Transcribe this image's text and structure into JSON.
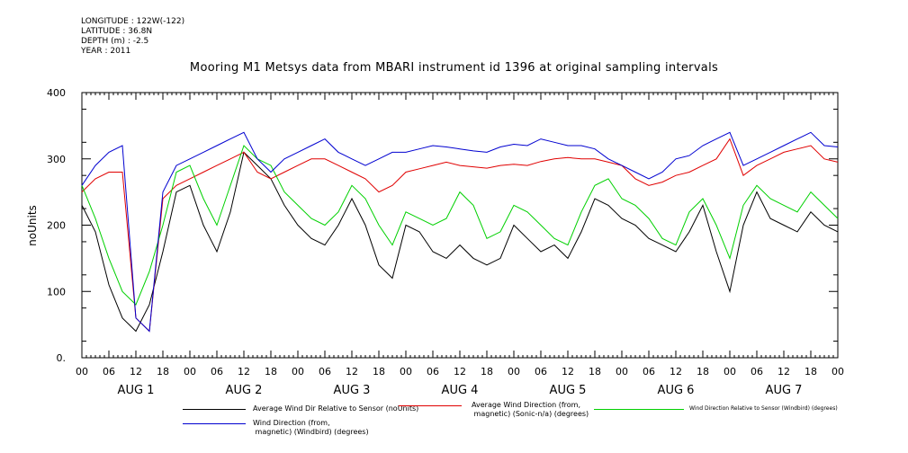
{
  "meta": {
    "longitude": "LONGITUDE : 122W(-122)",
    "latitude": "LATITUDE : 36.8N",
    "depth": "DEPTH (m) : -2.5",
    "year": "YEAR : 2011"
  },
  "chart_data": {
    "type": "line",
    "title": "Mooring M1 Metsys data from MBARI instrument id 1396 at original sampling intervals",
    "ylabel": "noUnits",
    "xlabel": "",
    "ylim": [
      0,
      400
    ],
    "yticks": [
      0,
      100,
      200,
      300,
      400
    ],
    "ytick_labels": [
      "0.",
      "100",
      "200",
      "300",
      "400"
    ],
    "xlim_hours": [
      0,
      168
    ],
    "xtick_labels": [
      "00",
      "06",
      "12",
      "18",
      "00",
      "06",
      "12",
      "18",
      "00",
      "06",
      "12",
      "18",
      "00",
      "06",
      "12",
      "18",
      "00",
      "06",
      "12",
      "18",
      "00",
      "06",
      "12",
      "18",
      "00",
      "06",
      "12",
      "18",
      "00"
    ],
    "day_labels": [
      "AUG 1",
      "AUG 2",
      "AUG 3",
      "AUG 4",
      "AUG 5",
      "AUG 6",
      "AUG 7"
    ],
    "grid": false,
    "colors": {
      "black": "#000000",
      "red": "#e00000",
      "green": "#00d000",
      "blue": "#0000d0"
    },
    "series": [
      {
        "name": "Average Wind Dir Relative to Sensor (noUnits)",
        "color": "#000000",
        "hours": [
          0,
          3,
          6,
          9,
          12,
          15,
          18,
          21,
          24,
          27,
          30,
          33,
          36,
          39,
          42,
          45,
          48,
          51,
          54,
          57,
          60,
          63,
          66,
          69,
          72,
          75,
          78,
          81,
          84,
          87,
          90,
          93,
          96,
          99,
          102,
          105,
          108,
          111,
          114,
          117,
          120,
          123,
          126,
          129,
          132,
          135,
          138,
          141,
          144,
          147,
          150,
          153,
          156,
          159,
          162,
          165,
          168
        ],
        "values": [
          230,
          190,
          110,
          60,
          40,
          80,
          160,
          250,
          260,
          200,
          160,
          220,
          310,
          290,
          270,
          230,
          200,
          180,
          170,
          200,
          240,
          200,
          140,
          120,
          200,
          190,
          160,
          150,
          170,
          150,
          140,
          150,
          200,
          180,
          160,
          170,
          150,
          190,
          240,
          230,
          210,
          200,
          180,
          170,
          160,
          190,
          230,
          160,
          100,
          200,
          250,
          210,
          200,
          190,
          220,
          200,
          190
        ]
      },
      {
        "name": "Average Wind Direction (from,\n magnetic) (Sonic-n/a) (degrees)",
        "color": "#e00000",
        "hours": [
          0,
          3,
          6,
          9,
          12,
          15,
          18,
          21,
          24,
          27,
          30,
          33,
          36,
          39,
          42,
          45,
          48,
          51,
          54,
          57,
          60,
          63,
          66,
          69,
          72,
          75,
          78,
          81,
          84,
          87,
          90,
          93,
          96,
          99,
          102,
          105,
          108,
          111,
          114,
          117,
          120,
          123,
          126,
          129,
          132,
          135,
          138,
          141,
          144,
          147,
          150,
          153,
          156,
          159,
          162,
          165,
          168
        ],
        "values": [
          250,
          270,
          280,
          280,
          60,
          40,
          240,
          260,
          270,
          280,
          290,
          300,
          310,
          280,
          270,
          280,
          290,
          300,
          300,
          290,
          280,
          270,
          250,
          260,
          280,
          285,
          290,
          295,
          290,
          288,
          286,
          290,
          292,
          290,
          296,
          300,
          302,
          300,
          300,
          295,
          290,
          270,
          260,
          265,
          275,
          280,
          290,
          300,
          330,
          275,
          290,
          300,
          310,
          315,
          320,
          300,
          295
        ]
      },
      {
        "name": "Wind Direction Relative to Sensor (Windbird) (degrees)",
        "color": "#00d000",
        "hours": [
          0,
          3,
          6,
          9,
          12,
          15,
          18,
          21,
          24,
          27,
          30,
          33,
          36,
          39,
          42,
          45,
          48,
          51,
          54,
          57,
          60,
          63,
          66,
          69,
          72,
          75,
          78,
          81,
          84,
          87,
          90,
          93,
          96,
          99,
          102,
          105,
          108,
          111,
          114,
          117,
          120,
          123,
          126,
          129,
          132,
          135,
          138,
          141,
          144,
          147,
          150,
          153,
          156,
          159,
          162,
          165,
          168
        ],
        "values": [
          260,
          210,
          150,
          100,
          80,
          130,
          200,
          280,
          290,
          240,
          200,
          260,
          320,
          300,
          290,
          250,
          230,
          210,
          200,
          220,
          260,
          240,
          200,
          170,
          220,
          210,
          200,
          210,
          250,
          230,
          180,
          190,
          230,
          220,
          200,
          180,
          170,
          220,
          260,
          270,
          240,
          230,
          210,
          180,
          170,
          220,
          240,
          200,
          150,
          230,
          260,
          240,
          230,
          220,
          250,
          230,
          210
        ]
      },
      {
        "name": "Wind Direction (from,\n magnetic) (Windbird) (degrees)",
        "color": "#0000d0",
        "hours": [
          0,
          3,
          6,
          9,
          12,
          15,
          18,
          21,
          24,
          27,
          30,
          33,
          36,
          39,
          42,
          45,
          48,
          51,
          54,
          57,
          60,
          63,
          66,
          69,
          72,
          75,
          78,
          81,
          84,
          87,
          90,
          93,
          96,
          99,
          102,
          105,
          108,
          111,
          114,
          117,
          120,
          123,
          126,
          129,
          132,
          135,
          138,
          141,
          144,
          147,
          150,
          153,
          156,
          159,
          162,
          165,
          168
        ],
        "values": [
          260,
          290,
          310,
          320,
          60,
          40,
          250,
          290,
          300,
          310,
          320,
          330,
          340,
          300,
          280,
          300,
          310,
          320,
          330,
          310,
          300,
          290,
          300,
          310,
          310,
          315,
          320,
          318,
          315,
          312,
          310,
          318,
          322,
          320,
          330,
          325,
          320,
          320,
          315,
          300,
          290,
          280,
          270,
          280,
          300,
          305,
          320,
          330,
          340,
          290,
          300,
          310,
          320,
          330,
          340,
          320,
          318
        ]
      }
    ]
  }
}
